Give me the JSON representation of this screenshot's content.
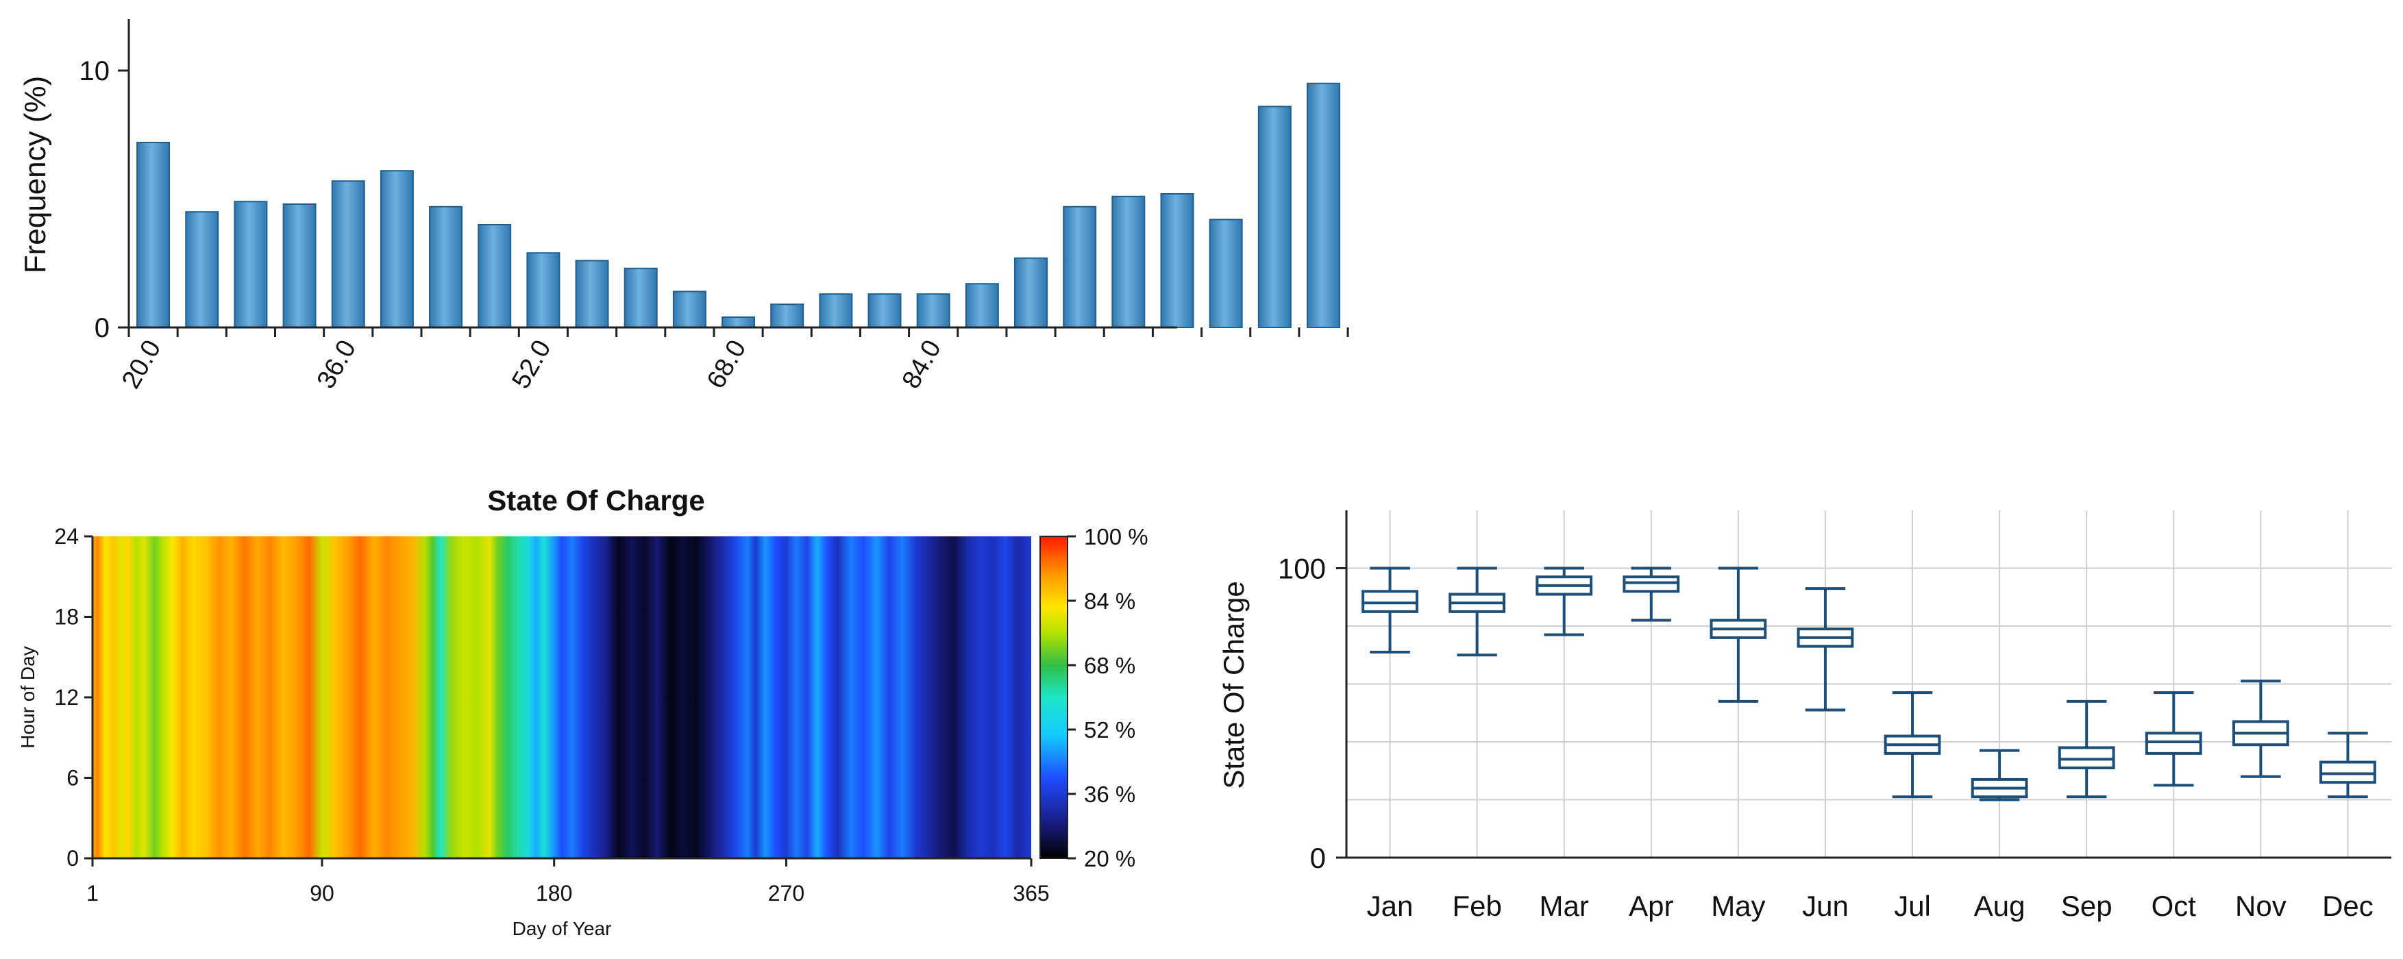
{
  "colors": {
    "bar_fill": "#3f8cc4",
    "bar_stroke": "#1f5f8f",
    "box_stroke": "#1c4e78",
    "box_fill": "#ffffff",
    "grid": "#cfcfcf",
    "axis": "#222222"
  },
  "chart_data": [
    {
      "type": "bar",
      "title": "",
      "xlabel": "",
      "ylabel": "Frequency (%)",
      "ylim": [
        0,
        12
      ],
      "yticks": [
        0,
        10
      ],
      "ytick_labels": [
        "0",
        "10"
      ],
      "bin_start": 18,
      "bin_width": 4,
      "xlim": [
        18,
        104
      ],
      "xticks": [
        20,
        36,
        52,
        68,
        84
      ],
      "xtick_labels": [
        "20.0",
        "36.0",
        "52.0",
        "68.0",
        "84.0"
      ],
      "values": [
        7.2,
        4.5,
        4.9,
        4.8,
        5.7,
        6.1,
        4.7,
        4.0,
        2.9,
        2.6,
        2.3,
        1.4,
        0.4,
        0.9,
        1.3,
        1.3,
        1.3,
        1.7,
        2.7,
        4.7,
        5.1,
        5.2,
        4.2,
        8.6,
        9.5
      ]
    },
    {
      "type": "heatmap",
      "title": "State Of Charge",
      "xlabel": "Day of Year",
      "ylabel": "Hour of Day",
      "xlim": [
        1,
        365
      ],
      "ylim": [
        0,
        24
      ],
      "xticks": [
        1,
        90,
        180,
        270,
        365
      ],
      "xtick_labels": [
        "1",
        "90",
        "180",
        "270",
        "365"
      ],
      "yticks": [
        0,
        6,
        12,
        18,
        24
      ],
      "ytick_labels": [
        "0",
        "6",
        "12",
        "18",
        "24"
      ],
      "colorbar_range": [
        20,
        100
      ],
      "colorbar_ticks": [
        20,
        36,
        52,
        68,
        84,
        100
      ],
      "colorbar_labels": [
        "20 %",
        "36 %",
        "52 %",
        "68 %",
        "84 %",
        "100 %"
      ],
      "day_profile": [
        [
          1,
          88
        ],
        [
          3,
          92
        ],
        [
          6,
          82
        ],
        [
          9,
          86
        ],
        [
          12,
          80
        ],
        [
          15,
          84
        ],
        [
          18,
          76
        ],
        [
          21,
          80
        ],
        [
          25,
          72
        ],
        [
          28,
          76
        ],
        [
          32,
          82
        ],
        [
          36,
          88
        ],
        [
          40,
          84
        ],
        [
          45,
          86
        ],
        [
          50,
          91
        ],
        [
          55,
          88
        ],
        [
          60,
          93
        ],
        [
          65,
          89
        ],
        [
          70,
          92
        ],
        [
          75,
          87
        ],
        [
          80,
          90
        ],
        [
          85,
          94
        ],
        [
          90,
          78
        ],
        [
          95,
          86
        ],
        [
          100,
          90
        ],
        [
          105,
          94
        ],
        [
          110,
          88
        ],
        [
          115,
          92
        ],
        [
          120,
          90
        ],
        [
          125,
          88
        ],
        [
          130,
          76
        ],
        [
          133,
          70
        ],
        [
          136,
          60
        ],
        [
          140,
          74
        ],
        [
          145,
          78
        ],
        [
          150,
          76
        ],
        [
          155,
          80
        ],
        [
          158,
          72
        ],
        [
          162,
          66
        ],
        [
          166,
          62
        ],
        [
          170,
          56
        ],
        [
          173,
          48
        ],
        [
          176,
          58
        ],
        [
          180,
          46
        ],
        [
          183,
          40
        ],
        [
          187,
          44
        ],
        [
          191,
          38
        ],
        [
          195,
          34
        ],
        [
          200,
          30
        ],
        [
          205,
          22
        ],
        [
          210,
          26
        ],
        [
          215,
          23
        ],
        [
          220,
          28
        ],
        [
          225,
          21
        ],
        [
          230,
          24
        ],
        [
          235,
          22
        ],
        [
          240,
          27
        ],
        [
          245,
          32
        ],
        [
          250,
          38
        ],
        [
          255,
          44
        ],
        [
          258,
          36
        ],
        [
          262,
          46
        ],
        [
          266,
          40
        ],
        [
          270,
          36
        ],
        [
          274,
          44
        ],
        [
          278,
          38
        ],
        [
          282,
          48
        ],
        [
          286,
          40
        ],
        [
          290,
          34
        ],
        [
          295,
          44
        ],
        [
          300,
          40
        ],
        [
          305,
          46
        ],
        [
          310,
          38
        ],
        [
          315,
          44
        ],
        [
          320,
          36
        ],
        [
          325,
          32
        ],
        [
          330,
          28
        ],
        [
          335,
          25
        ],
        [
          340,
          32
        ],
        [
          345,
          36
        ],
        [
          350,
          34
        ],
        [
          355,
          38
        ],
        [
          360,
          32
        ],
        [
          365,
          36
        ]
      ]
    },
    {
      "type": "box",
      "title": "",
      "xlabel": "",
      "ylabel": "State Of Charge",
      "ylim": [
        0,
        120
      ],
      "yticks": [
        0,
        100
      ],
      "ytick_labels": [
        "0",
        "100"
      ],
      "gridlines": [
        20,
        40,
        60,
        80,
        100
      ],
      "categories": [
        "Jan",
        "Feb",
        "Mar",
        "Apr",
        "May",
        "Jun",
        "Jul",
        "Aug",
        "Sep",
        "Oct",
        "Nov",
        "Dec"
      ],
      "boxes": [
        {
          "min": 71,
          "q1": 85,
          "median": 88,
          "q3": 92,
          "max": 100
        },
        {
          "min": 70,
          "q1": 85,
          "median": 88,
          "q3": 91,
          "max": 100
        },
        {
          "min": 77,
          "q1": 91,
          "median": 94,
          "q3": 97,
          "max": 100
        },
        {
          "min": 82,
          "q1": 92,
          "median": 95,
          "q3": 97,
          "max": 100
        },
        {
          "min": 54,
          "q1": 76,
          "median": 79,
          "q3": 82,
          "max": 100
        },
        {
          "min": 51,
          "q1": 73,
          "median": 76,
          "q3": 79,
          "max": 93
        },
        {
          "min": 21,
          "q1": 36,
          "median": 39,
          "q3": 42,
          "max": 57
        },
        {
          "min": 20,
          "q1": 21,
          "median": 24,
          "q3": 27,
          "max": 37
        },
        {
          "min": 21,
          "q1": 31,
          "median": 34,
          "q3": 38,
          "max": 54
        },
        {
          "min": 25,
          "q1": 36,
          "median": 40,
          "q3": 43,
          "max": 57
        },
        {
          "min": 28,
          "q1": 39,
          "median": 43,
          "q3": 47,
          "max": 61
        },
        {
          "min": 21,
          "q1": 26,
          "median": 29,
          "q3": 33,
          "max": 43
        }
      ]
    }
  ]
}
